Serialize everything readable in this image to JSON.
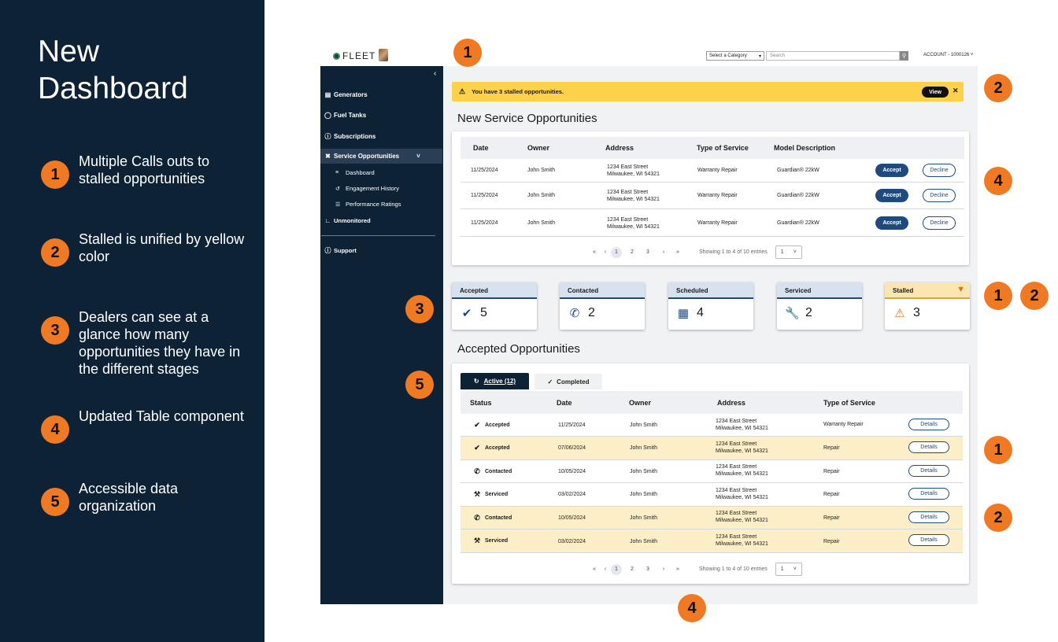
{
  "annotation": {
    "title_line1": "New",
    "title_line2": "Dashboard",
    "items": [
      {
        "num": "1",
        "text": "Multiple Calls outs to stalled opportunities"
      },
      {
        "num": "2",
        "text": "Stalled is unified by yellow color"
      },
      {
        "num": "3",
        "text": "Dealers can see at a glance how many opportunities they have in the different stages"
      },
      {
        "num": "4",
        "text": "Updated Table component"
      },
      {
        "num": "5",
        "text": "Accessible data organization"
      }
    ]
  },
  "markers": {
    "m1_top": "1",
    "m2_alert": "2",
    "m4_table": "4",
    "m3_stats": "3",
    "m1_stats": "1",
    "m2_stats": "2",
    "m5_tabs": "5",
    "m1_rows": "1",
    "m2_rows": "2",
    "m4_bottom": "4"
  },
  "header": {
    "logo_text": "FLEET",
    "category_placeholder": "Select a Category",
    "search_placeholder": "Search",
    "account": "ACCOUNT - 1000126"
  },
  "sidebar": {
    "items": [
      {
        "label": "Generators",
        "icon": "generator-icon"
      },
      {
        "label": "Fuel Tanks",
        "icon": "fuel-tank-icon"
      },
      {
        "label": "Subscriptions",
        "icon": "subscriptions-icon"
      },
      {
        "label": "Service Opportunities",
        "icon": "tools-icon"
      },
      {
        "label": "Unmonitored",
        "icon": "chart-icon"
      },
      {
        "label": "Support",
        "icon": "help-icon"
      }
    ],
    "sub_items": [
      {
        "label": "Dashboard",
        "icon": "list-icon"
      },
      {
        "label": "Engagement History",
        "icon": "history-icon"
      },
      {
        "label": "Performance Ratings",
        "icon": "ratings-icon"
      }
    ]
  },
  "alert": {
    "text": "You have 3 stalled opportunities.",
    "view_label": "View",
    "color": "#fdd14a"
  },
  "new_service": {
    "title": "New Service Opportunities",
    "columns": [
      "Date",
      "Owner",
      "Address",
      "Type of Service",
      "Model Description"
    ],
    "rows": [
      {
        "date": "11/25/2024",
        "owner": "John Smith",
        "addr1": "1234 East Street",
        "addr2": "Milwaukee, WI 54321",
        "type": "Warranty Repair",
        "model": "Guardian® 22kW",
        "accept": "Accept",
        "decline": "Decline"
      },
      {
        "date": "11/25/2024",
        "owner": "John Smith",
        "addr1": "1234 East Street",
        "addr2": "Milwaukee, WI 54321",
        "type": "Warranty Repair",
        "model": "Guardian® 22kW",
        "accept": "Accept",
        "decline": "Decline"
      },
      {
        "date": "11/25/2024",
        "owner": "John Smith",
        "addr1": "1234 East Street",
        "addr2": "Milwaukee, WI 54321",
        "type": "Warranty Repair",
        "model": "Guardian® 22kW",
        "accept": "Accept",
        "decline": "Decline"
      }
    ],
    "pager": {
      "pages": [
        "1",
        "2",
        "3"
      ],
      "current": "1",
      "info": "Showing 1 to 4 of 10 entries",
      "per_page": "1"
    }
  },
  "stats": [
    {
      "label": "Accepted",
      "value": "5",
      "icon": "check-circle-icon"
    },
    {
      "label": "Contacted",
      "value": "2",
      "icon": "phone-icon"
    },
    {
      "label": "Scheduled",
      "value": "4",
      "icon": "calendar-icon"
    },
    {
      "label": "Serviced",
      "value": "2",
      "icon": "wrench-icon"
    },
    {
      "label": "Stalled",
      "value": "3",
      "icon": "warning-icon"
    }
  ],
  "accepted": {
    "title": "Accepted Opportunities",
    "tab_active": "Active (12)",
    "tab_completed": "Completed",
    "columns": [
      "Status",
      "Date",
      "Owner",
      "Address",
      "Type of Service"
    ],
    "rows": [
      {
        "status": "Accepted",
        "date": "11/25/2024",
        "owner": "John Smith",
        "addr1": "1234 East Street",
        "addr2": "Milwaukee, WI 54321",
        "type": "Warranty Repair",
        "details": "Details",
        "stalled": false
      },
      {
        "status": "Accepted",
        "date": "07/06/2024",
        "owner": "John Smith",
        "addr1": "1234 East Street",
        "addr2": "Milwaukee, WI 54321",
        "type": "Repair",
        "details": "Details",
        "stalled": true
      },
      {
        "status": "Contacted",
        "date": "10/05/2024",
        "owner": "John Smith",
        "addr1": "1234 East Street",
        "addr2": "Milwaukee, WI 54321",
        "type": "Repair",
        "details": "Details",
        "stalled": false
      },
      {
        "status": "Serviced",
        "date": "03/02/2024",
        "owner": "John Smith",
        "addr1": "1234 East Street",
        "addr2": "Milwaukee, WI 54321",
        "type": "Repair",
        "details": "Details",
        "stalled": false
      },
      {
        "status": "Contacted",
        "date": "10/05/2024",
        "owner": "John Smith",
        "addr1": "1234 East Street",
        "addr2": "Milwaukee, WI 54321",
        "type": "Repair",
        "details": "Details",
        "stalled": true
      },
      {
        "status": "Serviced",
        "date": "03/02/2024",
        "owner": "John Smith",
        "addr1": "1234 East Street",
        "addr2": "Milwaukee, WI 54321",
        "type": "Repair",
        "details": "Details",
        "stalled": true
      }
    ],
    "pager": {
      "pages": [
        "1",
        "2",
        "3"
      ],
      "current": "1",
      "info": "Showing 1 to 4 of 10 entries",
      "per_page": "1"
    },
    "stalled_row_color": "#fcefc8"
  }
}
